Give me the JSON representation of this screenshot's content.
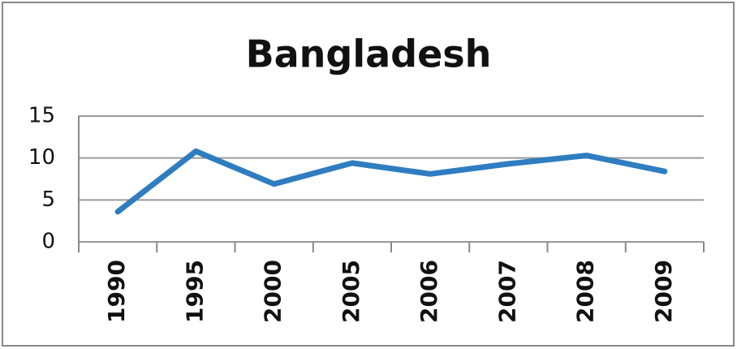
{
  "chart_data": {
    "type": "line",
    "title": "Bangladesh",
    "categories": [
      "1990",
      "1995",
      "2000",
      "2005",
      "2006",
      "2007",
      "2008",
      "2009"
    ],
    "series": [
      {
        "name": "Bangladesh",
        "color": "#2f7dc0",
        "values": [
          3.6,
          10.8,
          6.9,
          9.4,
          8.1,
          9.3,
          10.3,
          8.4
        ]
      }
    ],
    "ylim": [
      0,
      15
    ],
    "yticks": [
      0,
      5,
      10,
      15
    ],
    "grid": true
  }
}
